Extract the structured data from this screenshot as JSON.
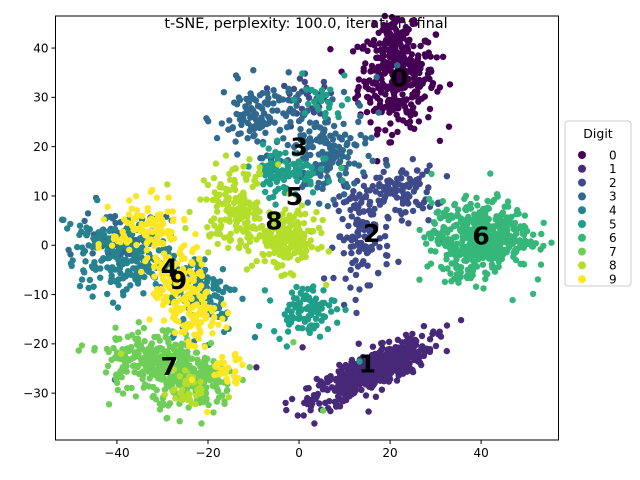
{
  "chart_data": {
    "type": "scatter",
    "title": "t-SNE, perplexity: 100.0, iteration: final",
    "xlabel": "",
    "ylabel": "",
    "xlim": [
      -53.5,
      57.0
    ],
    "ylim": [
      -39.5,
      46.5
    ],
    "xticks": [
      -40,
      -20,
      0,
      20,
      40
    ],
    "yticks": [
      -30,
      -20,
      -10,
      0,
      10,
      20,
      30,
      40
    ],
    "grid": false,
    "legend": {
      "title": "Digit",
      "position": "right"
    },
    "series": [
      {
        "name": "0",
        "color": "#440154",
        "label": "0",
        "label_pos": [
          22,
          34
        ],
        "clusters": [
          {
            "cx": 21.5,
            "cy": 34,
            "sx": 4.2,
            "sy": 5,
            "n": 320
          },
          {
            "cx": 21,
            "cy": 41,
            "sx": 2.5,
            "sy": 2.5,
            "n": 70
          }
        ]
      },
      {
        "name": "1",
        "color": "#482878",
        "label": "1",
        "label_pos": [
          15,
          -24
        ],
        "clusters": [
          {
            "cx": 16,
            "cy": -25.5,
            "sx": 7,
            "sy": 1.8,
            "n": 480,
            "rot": 0.42
          }
        ]
      },
      {
        "name": "2",
        "color": "#3e4a89",
        "label": "2",
        "label_pos": [
          16,
          2.5
        ],
        "clusters": [
          {
            "cx": 22,
            "cy": 11,
            "sx": 4,
            "sy": 2.5,
            "n": 110
          },
          {
            "cx": 14,
            "cy": 2,
            "sx": 3,
            "sy": 5,
            "n": 110
          },
          {
            "cx": 2,
            "cy": 30,
            "sx": 3,
            "sy": 2,
            "n": 30
          }
        ]
      },
      {
        "name": "3",
        "color": "#31688e",
        "label": "3",
        "label_pos": [
          0,
          20
        ],
        "clusters": [
          {
            "cx": -8,
            "cy": 26,
            "sx": 5,
            "sy": 3.5,
            "n": 130
          },
          {
            "cx": 6,
            "cy": 18,
            "sx": 4.5,
            "sy": 4.5,
            "n": 140
          },
          {
            "cx": -40,
            "cy": 2,
            "sx": 4,
            "sy": 2.5,
            "n": 70
          }
        ]
      },
      {
        "name": "4",
        "color": "#26828e",
        "label": "4",
        "label_pos": [
          -28.5,
          -4.5
        ],
        "clusters": [
          {
            "cx": -38,
            "cy": -3,
            "sx": 5,
            "sy": 4,
            "n": 190
          },
          {
            "cx": -21,
            "cy": -10,
            "sx": 4,
            "sy": 4,
            "n": 110
          },
          {
            "cx": -45,
            "cy": 2,
            "sx": 2,
            "sy": 1.5,
            "n": 25
          }
        ]
      },
      {
        "name": "5",
        "color": "#1f9e89",
        "label": "5",
        "label_pos": [
          -1,
          10
        ],
        "clusters": [
          {
            "cx": -3,
            "cy": 15,
            "sx": 3.5,
            "sy": 2.5,
            "n": 90
          },
          {
            "cx": 1,
            "cy": -13,
            "sx": 3.5,
            "sy": 2.5,
            "n": 90
          },
          {
            "cx": 6,
            "cy": 29,
            "sx": 2.5,
            "sy": 2,
            "n": 25
          }
        ]
      },
      {
        "name": "6",
        "color": "#35b779",
        "label": "6",
        "label_pos": [
          40,
          2
        ],
        "clusters": [
          {
            "cx": 40,
            "cy": 2,
            "sx": 5.5,
            "sy": 3.5,
            "n": 420
          },
          {
            "cx": 36,
            "cy": -4,
            "sx": 2.5,
            "sy": 2,
            "n": 40
          }
        ]
      },
      {
        "name": "7",
        "color": "#6ece58",
        "label": "7",
        "label_pos": [
          -28.5,
          -24.5
        ],
        "clusters": [
          {
            "cx": -33,
            "cy": -23,
            "sx": 5,
            "sy": 3,
            "n": 210
          },
          {
            "cx": -23,
            "cy": -28,
            "sx": 4.5,
            "sy": 3,
            "n": 200
          }
        ]
      },
      {
        "name": "8",
        "color": "#b5de2b",
        "label": "8",
        "label_pos": [
          -5.5,
          5
        ],
        "clusters": [
          {
            "cx": -14,
            "cy": 8,
            "sx": 4,
            "sy": 4,
            "n": 150
          },
          {
            "cx": -3,
            "cy": 1,
            "sx": 3.5,
            "sy": 3,
            "n": 200
          },
          {
            "cx": -24,
            "cy": -29,
            "sx": 2,
            "sy": 2,
            "n": 30
          }
        ]
      },
      {
        "name": "9",
        "color": "#fde725",
        "label": "9",
        "label_pos": [
          -26.5,
          -7
        ],
        "clusters": [
          {
            "cx": -33,
            "cy": 3,
            "sx": 4,
            "sy": 3,
            "n": 110
          },
          {
            "cx": -27,
            "cy": -8,
            "sx": 3,
            "sy": 4,
            "n": 120
          },
          {
            "cx": -22,
            "cy": -15,
            "sx": 2.5,
            "sy": 2.5,
            "n": 70
          },
          {
            "cx": -16,
            "cy": -25,
            "sx": 2,
            "sy": 1.5,
            "n": 30
          }
        ]
      }
    ]
  }
}
